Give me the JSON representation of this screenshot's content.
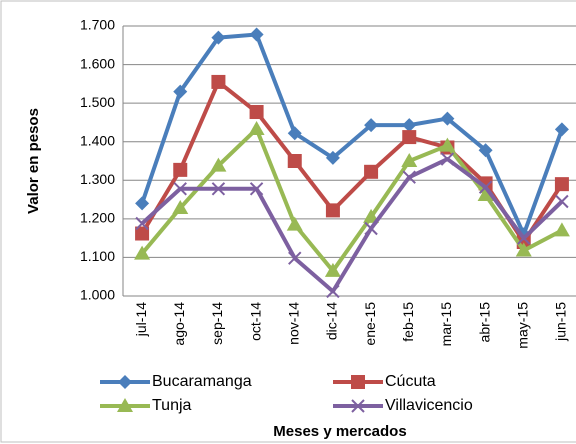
{
  "chart_data": {
    "type": "line",
    "x_label": "Meses y mercados",
    "y_label": "Valor en pesos",
    "categories": [
      "jul-14",
      "ago-14",
      "sep-14",
      "oct-14",
      "nov-14",
      "dic-14",
      "ene-15",
      "feb-15",
      "mar-15",
      "abr-15",
      "may-15",
      "jun-15"
    ],
    "series": [
      {
        "name": "Bucaramanga",
        "color": "#4a7ebb",
        "marker": "diamond",
        "values": [
          1240,
          1530,
          1670,
          1678,
          1422,
          1358,
          1443,
          1443,
          1460,
          1378,
          1160,
          1432
        ]
      },
      {
        "name": "Cúcuta",
        "color": "#be4b48",
        "marker": "square",
        "values": [
          1162,
          1327,
          1555,
          1477,
          1350,
          1222,
          1322,
          1412,
          1385,
          1292,
          1140,
          1290
        ]
      },
      {
        "name": "Tunja",
        "color": "#98b954",
        "marker": "triangle",
        "values": [
          1110,
          1228,
          1338,
          1433,
          1185,
          1065,
          1205,
          1350,
          1390,
          1262,
          1118,
          1170
        ]
      },
      {
        "name": "Villavicencio",
        "color": "#7d60a0",
        "marker": "x",
        "values": [
          1188,
          1278,
          1278,
          1278,
          1098,
          1012,
          1175,
          1308,
          1355,
          1282,
          1150,
          1245
        ]
      }
    ],
    "ylim": [
      1000,
      1700
    ],
    "yticks": [
      {
        "value": 1000,
        "label": "1.000"
      },
      {
        "value": 1100,
        "label": "1.100"
      },
      {
        "value": 1200,
        "label": "1.200"
      },
      {
        "value": 1300,
        "label": "1.300"
      },
      {
        "value": 1400,
        "label": "1.400"
      },
      {
        "value": 1500,
        "label": "1.500"
      },
      {
        "value": 1600,
        "label": "1.600"
      },
      {
        "value": 1700,
        "label": "1.700"
      }
    ],
    "grid": true
  }
}
